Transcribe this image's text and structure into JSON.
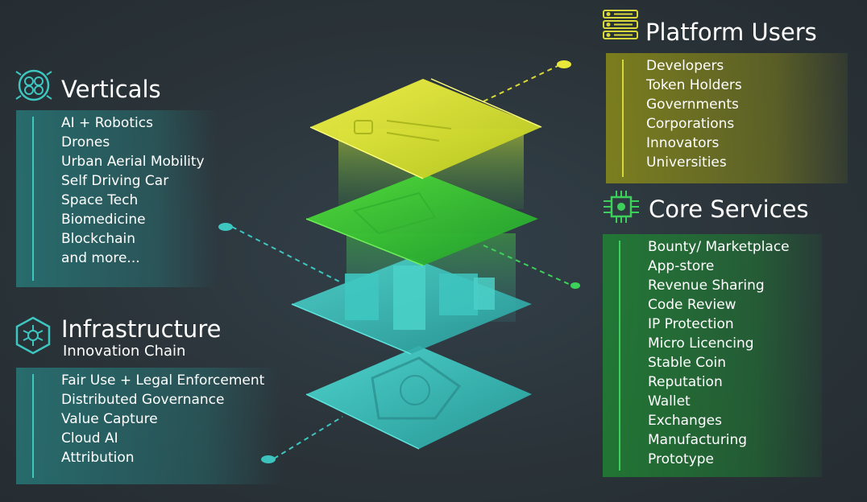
{
  "verticals": {
    "title": "Verticals",
    "items": [
      "AI + Robotics",
      "Drones",
      "Urban Aerial Mobility",
      "Self Driving Car",
      "Space Tech",
      "Biomedicine",
      "Blockchain",
      "and more..."
    ]
  },
  "infrastructure": {
    "title": "Infrastructure",
    "subtitle": "Innovation Chain",
    "items": [
      "Fair Use + Legal Enforcement",
      "Distributed Governance",
      "Value Capture",
      "Cloud AI",
      "Attribution"
    ]
  },
  "platform_users": {
    "title": "Platform Users",
    "items": [
      "Developers",
      "Token Holders",
      "Governments",
      "Corporations",
      "Innovators",
      "Universities"
    ]
  },
  "core_services": {
    "title": "Core Services",
    "items": [
      "Bounty/ Marketplace",
      "App-store",
      "Revenue Sharing",
      "Code Review",
      "IP Protection",
      "Micro Licencing",
      "Stable Coin",
      "Reputation",
      "Wallet",
      "Exchanges",
      "Manufacturing",
      "Prototype"
    ]
  },
  "colors": {
    "background": "#2a3338",
    "teal": "#3ec6c0",
    "yellow": "#d8d83a",
    "green": "#3cd05a",
    "text": "#ffffff"
  },
  "icons": {
    "verticals": "cycle-icon",
    "infrastructure": "network-icon",
    "platform_users": "users-list-icon",
    "core_services": "chip-icon"
  }
}
